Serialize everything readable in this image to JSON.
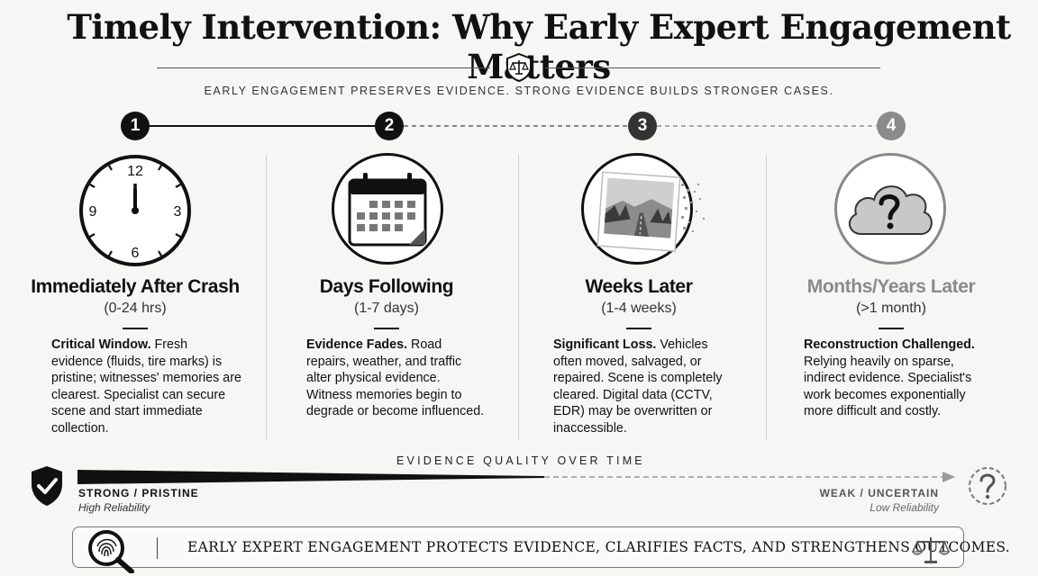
{
  "title": "Timely Intervention: Why Early Expert Engagement Matters",
  "subtitle": "EARLY ENGAGEMENT PRESERVES EVIDENCE.  STRONG EVIDENCE BUILDS STRONGER CASES.",
  "stages": [
    {
      "num": "1",
      "title": "Immediately After Crash",
      "range": "(0-24 hrs)",
      "lead": "Critical Window.",
      "body": " Fresh evidence (fluids, tire marks) is pristine; witnesses' memories are clearest. Specialist can secure scene and start immediate collection.",
      "icon": "clock-icon",
      "clock": {
        "n12": "12",
        "n3": "3",
        "n6": "6",
        "n9": "9"
      }
    },
    {
      "num": "2",
      "title": "Days Following",
      "range": "(1-7 days)",
      "lead": "Evidence Fades.",
      "body": " Road repairs, weather, and traffic alter physical evidence. Witness memories begin to degrade or become influenced.",
      "icon": "calendar-icon"
    },
    {
      "num": "3",
      "title": "Weeks Later",
      "range": "(1-4 weeks)",
      "lead": "Significant Loss.",
      "body": " Vehicles often moved, salvaged, or repaired. Scene is completely cleared. Digital data (CCTV, EDR) may be overwritten or inaccessible.",
      "icon": "fading-photo-icon"
    },
    {
      "num": "4",
      "title": "Months/Years Later",
      "range": "(>1 month)",
      "lead": "Reconstruction Challenged.",
      "body": " Relying heavily on sparse, indirect evidence. Specialist's work becomes exponentially more difficult and costly.",
      "icon": "question-cloud-icon"
    }
  ],
  "quality": {
    "label": "EVIDENCE QUALITY OVER TIME",
    "strong": "STRONG / PRISTINE",
    "strong_sub": "High Reliability",
    "weak": "WEAK / UNCERTAIN",
    "weak_sub": "Low Reliability"
  },
  "footer": "EARLY EXPERT ENGAGEMENT PROTECTS EVIDENCE, CLARIFIES FACTS, AND STRENGTHENS OUTCOMES.",
  "colors": {
    "strong": "#111111",
    "faded": "#8a8a8a",
    "accent_dark": "#111111"
  }
}
